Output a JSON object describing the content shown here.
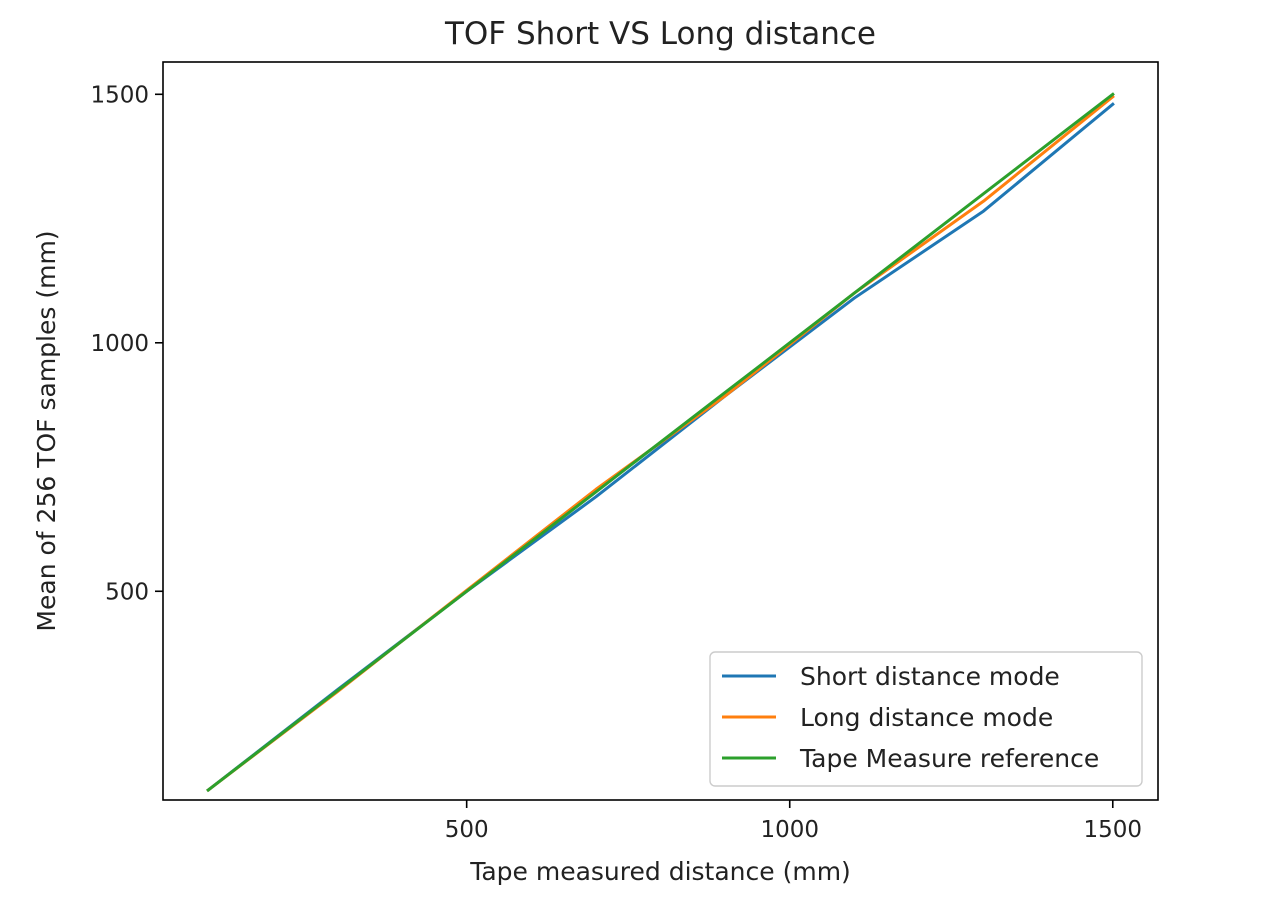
{
  "chart_data": {
    "type": "line",
    "title": "TOF Short VS Long distance",
    "xlabel": "Tape measured distance (mm)",
    "ylabel": "Mean of 256 TOF samples (mm)",
    "xlim": [
      30,
      1570
    ],
    "ylim": [
      80,
      1565
    ],
    "x_ticks": [
      500,
      1000,
      1500
    ],
    "y_ticks": [
      500,
      1000,
      1500
    ],
    "grid": false,
    "legend_position": "bottom-right",
    "x": [
      100,
      300,
      500,
      700,
      900,
      1100,
      1300,
      1500
    ],
    "series": [
      {
        "name": "Short distance mode",
        "color": "#1f77b4",
        "values": [
          100,
          302,
          500,
          690,
          893,
          1090,
          1265,
          1480
        ]
      },
      {
        "name": "Long distance mode",
        "color": "#ff7f0e",
        "values": [
          100,
          298,
          502,
          705,
          893,
          1100,
          1285,
          1495
        ]
      },
      {
        "name": "Tape Measure reference",
        "color": "#2ca02c",
        "values": [
          100,
          300,
          500,
          700,
          900,
          1100,
          1300,
          1500
        ]
      }
    ]
  }
}
